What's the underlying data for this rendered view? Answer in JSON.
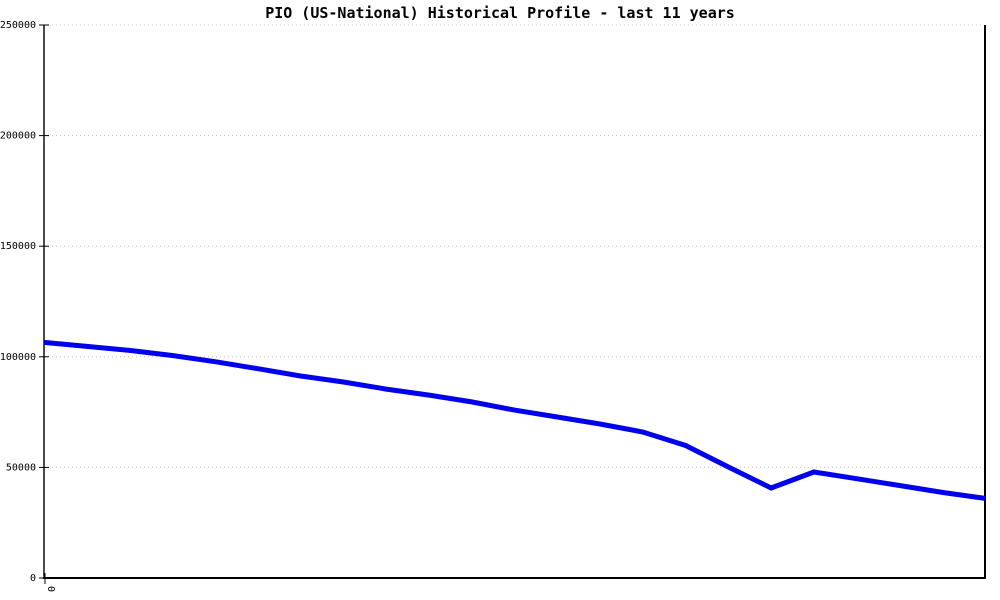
{
  "chart_data": {
    "type": "line",
    "title": "PIO (US-National) Historical Profile - last 11 years",
    "xlabel": "",
    "ylabel": "",
    "x_tick_labels_visible": [
      "0"
    ],
    "x_tick_label_rotation_deg": 90,
    "x": [
      0,
      0.5,
      1,
      1.5,
      2,
      2.5,
      3,
      3.5,
      4,
      4.5,
      5,
      5.5,
      6,
      6.5,
      7,
      7.5,
      8,
      8.5,
      9,
      9.5,
      10,
      10.5,
      11
    ],
    "series": [
      {
        "name": "PIO (US-National)",
        "values": [
          106500,
          104700,
          102900,
          100600,
          97800,
          94600,
          91300,
          88600,
          85400,
          82700,
          79600,
          75900,
          72800,
          69600,
          66000,
          59900,
          50200,
          40700,
          47900,
          44900,
          41800,
          38700,
          36000
        ]
      }
    ],
    "ylim": [
      0,
      250000
    ],
    "y_ticks": [
      0,
      50000,
      100000,
      150000,
      200000,
      250000
    ],
    "grid": "horizontal-dotted",
    "legend": "none",
    "colors": {
      "line": "#0000ee",
      "grid": "#c0c0c0",
      "axis": "#000000",
      "text": "#000000",
      "background": "#ffffff"
    }
  }
}
